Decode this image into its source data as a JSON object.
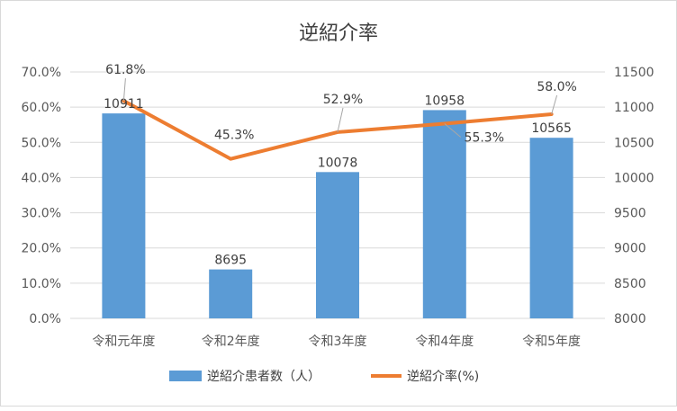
{
  "chart_data": {
    "type": "bar+line",
    "title": "逆紹介率",
    "categories": [
      "令和元年度",
      "令和2年度",
      "令和3年度",
      "令和4年度",
      "令和5年度"
    ],
    "series": [
      {
        "name": "逆紹介患者数（人）",
        "type": "bar",
        "axis": "secondary",
        "values": [
          10911,
          8695,
          10078,
          10958,
          10565
        ],
        "labels": [
          "10911",
          "8695",
          "10078",
          "10958",
          "10565"
        ],
        "color": "#5b9bd5"
      },
      {
        "name": "逆紹介率(%)",
        "type": "line",
        "axis": "primary",
        "values": [
          61.8,
          45.3,
          52.9,
          55.3,
          58.0
        ],
        "labels": [
          "61.8%",
          "45.3%",
          "52.9%",
          "55.3%",
          "58.0%"
        ],
        "color": "#ed7d31"
      }
    ],
    "y_primary": {
      "range": [
        0,
        70
      ],
      "ticks": [
        "0.0%",
        "10.0%",
        "20.0%",
        "30.0%",
        "40.0%",
        "50.0%",
        "60.0%",
        "70.0%"
      ]
    },
    "y_secondary": {
      "range": [
        8000,
        11500
      ],
      "ticks": [
        "8000",
        "8500",
        "9000",
        "9500",
        "10000",
        "10500",
        "11000",
        "11500"
      ]
    },
    "grid": true,
    "legend": "bottom"
  }
}
